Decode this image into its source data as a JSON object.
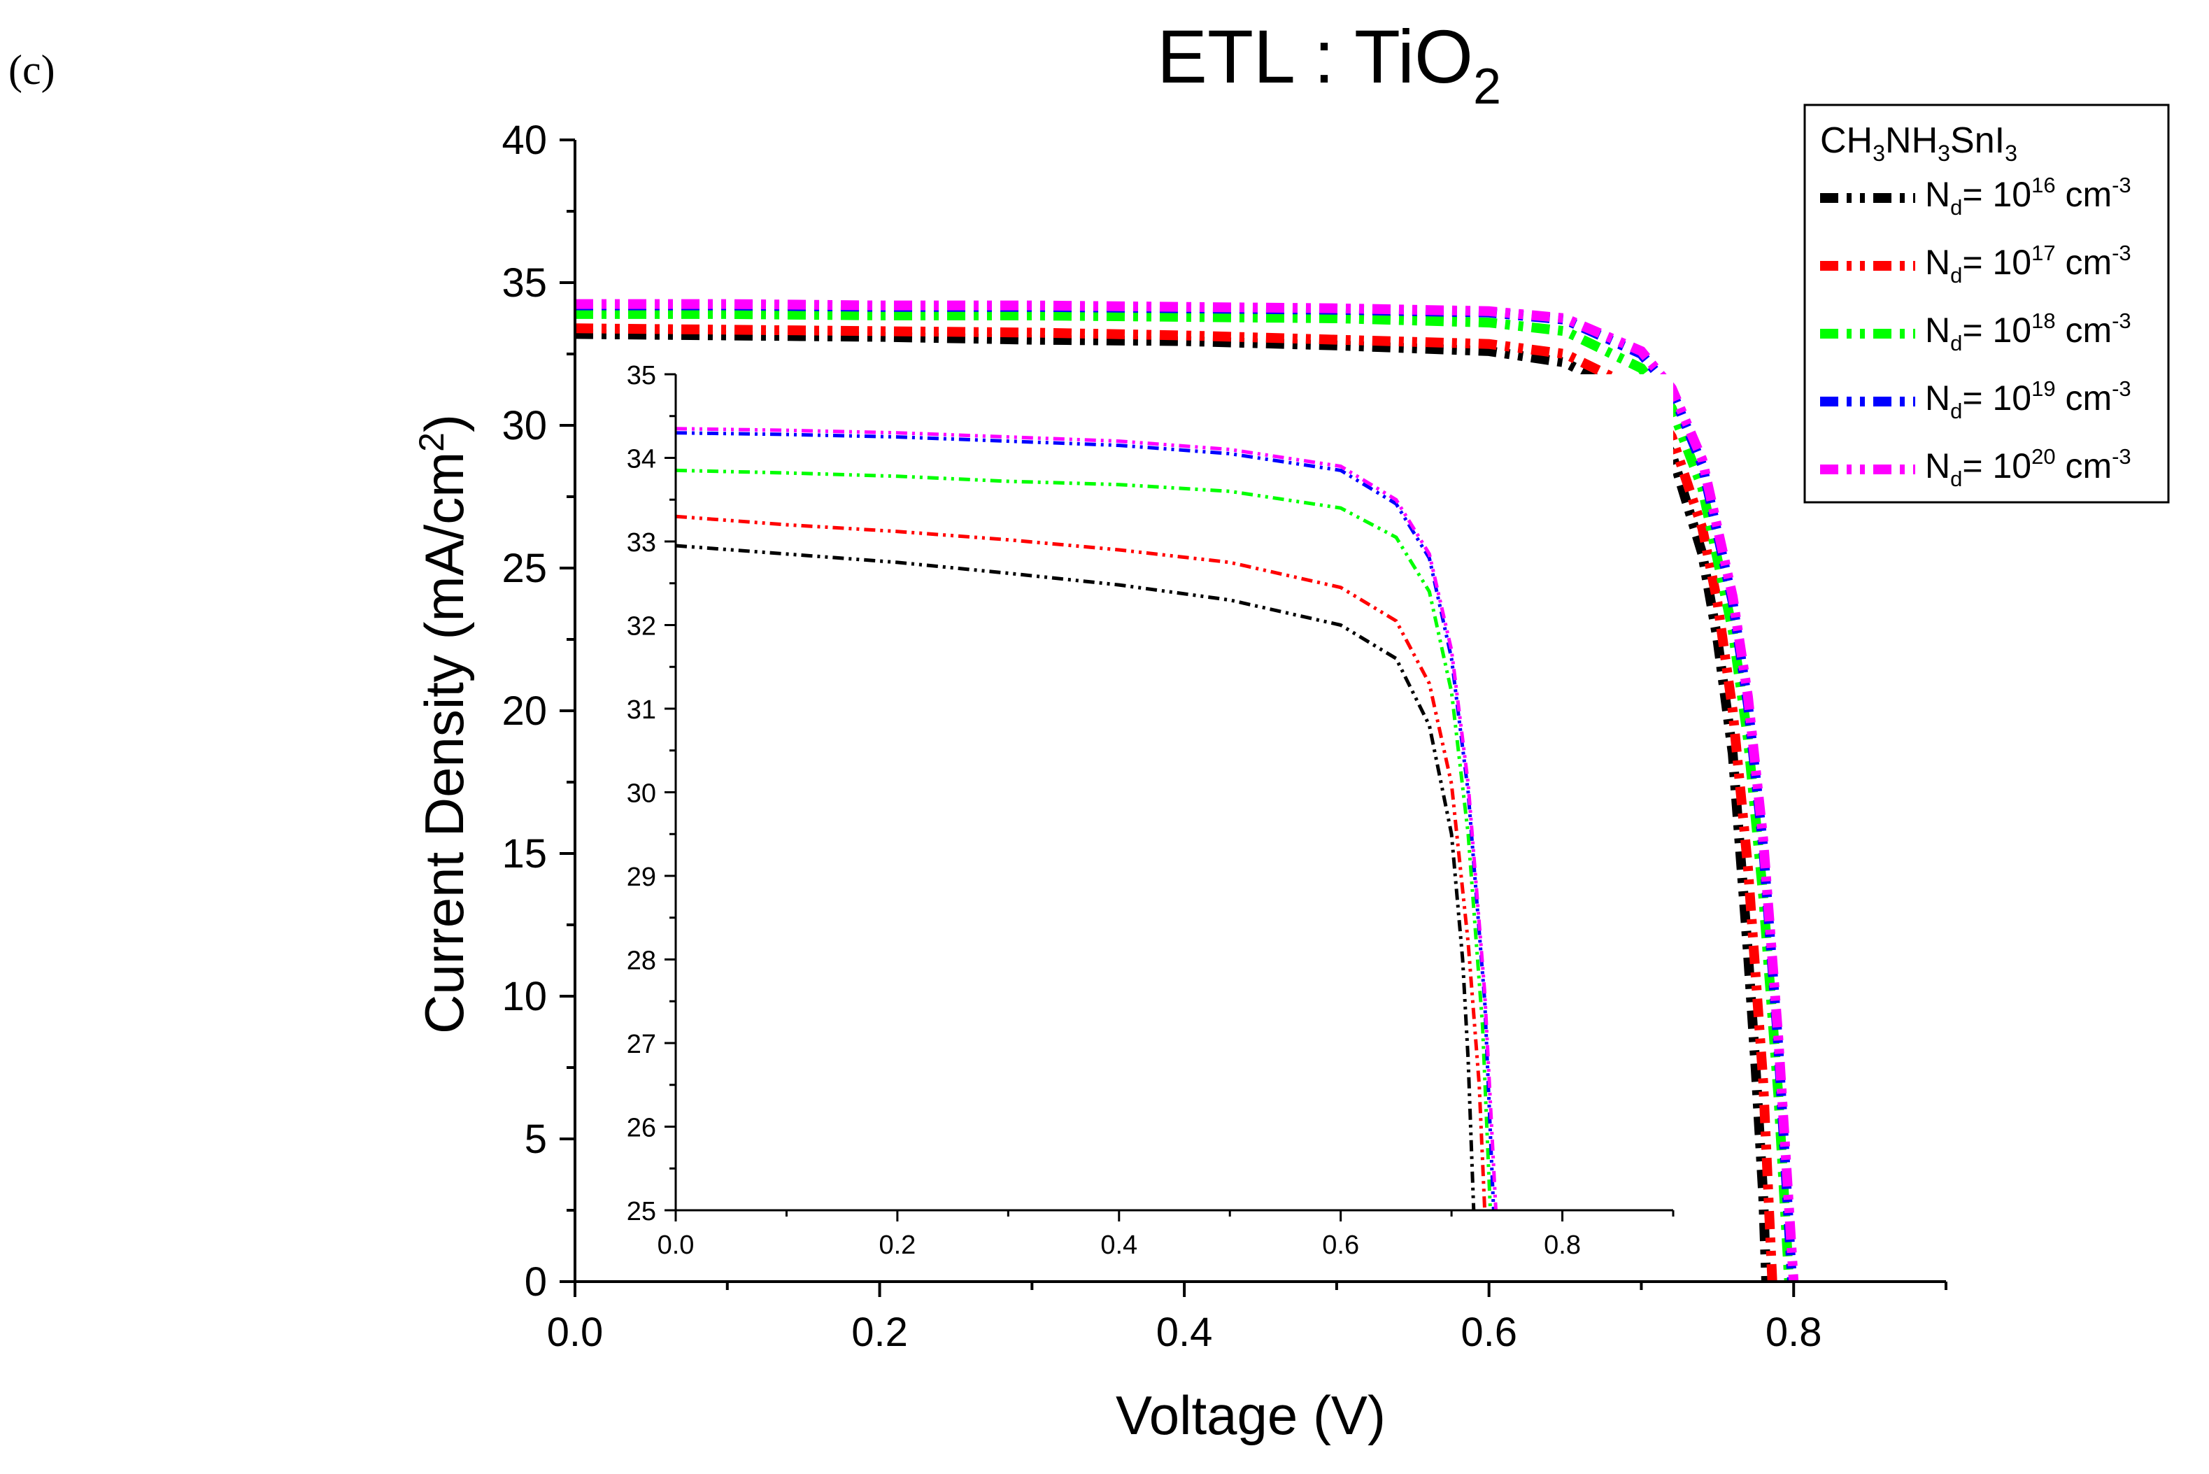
{
  "panel_label": "(c)",
  "chart_data": {
    "type": "line",
    "title": "ETL : TiO",
    "title_sub": "2",
    "xlabel": "Voltage (V)",
    "ylabel": "Current Density (mA/cm",
    "ylabel_sup": "2",
    "ylabel_end": ")",
    "xlim": [
      0,
      0.9
    ],
    "ylim": [
      0,
      40
    ],
    "x_ticks": [
      0.0,
      0.2,
      0.4,
      0.6,
      0.8
    ],
    "x_tick_labels": [
      "0.0",
      "0.2",
      "0.4",
      "0.6",
      "0.8"
    ],
    "y_ticks": [
      0,
      5,
      10,
      15,
      20,
      25,
      30,
      35,
      40
    ],
    "y_tick_labels": [
      "0",
      "5",
      "10",
      "15",
      "20",
      "25",
      "30",
      "35",
      "40"
    ],
    "legend": {
      "title": "CH3NH3SnI3",
      "title_parts": [
        {
          "t": "CH",
          "s": ""
        },
        {
          "t": "3",
          "s": "sub"
        },
        {
          "t": "NH",
          "s": ""
        },
        {
          "t": "3",
          "s": "sub"
        },
        {
          "t": "SnI",
          "s": ""
        },
        {
          "t": "3",
          "s": "sub"
        }
      ],
      "position": "top-right",
      "entries": [
        {
          "parts": [
            {
              "t": "N",
              "s": ""
            },
            {
              "t": "d",
              "s": "sub"
            },
            {
              "t": "= 10",
              "s": ""
            },
            {
              "t": "16",
              "s": "sup"
            },
            {
              "t": " cm",
              "s": ""
            },
            {
              "t": "-3",
              "s": "sup"
            }
          ]
        },
        {
          "parts": [
            {
              "t": "N",
              "s": ""
            },
            {
              "t": "d",
              "s": "sub"
            },
            {
              "t": "= 10",
              "s": ""
            },
            {
              "t": "17",
              "s": "sup"
            },
            {
              "t": " cm",
              "s": ""
            },
            {
              "t": "-3",
              "s": "sup"
            }
          ]
        },
        {
          "parts": [
            {
              "t": "N",
              "s": ""
            },
            {
              "t": "d",
              "s": "sub"
            },
            {
              "t": "= 10",
              "s": ""
            },
            {
              "t": "18",
              "s": "sup"
            },
            {
              "t": " cm",
              "s": ""
            },
            {
              "t": "-3",
              "s": "sup"
            }
          ]
        },
        {
          "parts": [
            {
              "t": "N",
              "s": ""
            },
            {
              "t": "d",
              "s": "sub"
            },
            {
              "t": "= 10",
              "s": ""
            },
            {
              "t": "19",
              "s": "sup"
            },
            {
              "t": " cm",
              "s": ""
            },
            {
              "t": "-3",
              "s": "sup"
            }
          ]
        },
        {
          "parts": [
            {
              "t": "N",
              "s": ""
            },
            {
              "t": "d",
              "s": "sub"
            },
            {
              "t": "= 10",
              "s": ""
            },
            {
              "t": "20",
              "s": "sup"
            },
            {
              "t": " cm",
              "s": ""
            },
            {
              "t": "-3",
              "s": "sup"
            }
          ]
        }
      ]
    },
    "series": [
      {
        "name": "Nd = 10^16 cm^-3",
        "color": "#000000",
        "jsc": 33.2,
        "voc": 0.782,
        "points": [
          [
            0.0,
            33.2
          ],
          [
            0.1,
            33.15
          ],
          [
            0.2,
            33.1
          ],
          [
            0.3,
            33.0
          ],
          [
            0.4,
            32.95
          ],
          [
            0.5,
            32.8
          ],
          [
            0.6,
            32.6
          ],
          [
            0.65,
            32.2
          ],
          [
            0.7,
            30.8
          ],
          [
            0.72,
            29.0
          ],
          [
            0.74,
            25.5
          ],
          [
            0.75,
            22.5
          ],
          [
            0.76,
            18.5
          ],
          [
            0.77,
            11.5
          ],
          [
            0.775,
            7.5
          ],
          [
            0.78,
            3.0
          ],
          [
            0.782,
            0.0
          ]
        ]
      },
      {
        "name": "Nd = 10^17 cm^-3",
        "color": "#ff0000",
        "jsc": 33.4,
        "voc": 0.786,
        "points": [
          [
            0.0,
            33.4
          ],
          [
            0.1,
            33.35
          ],
          [
            0.2,
            33.3
          ],
          [
            0.3,
            33.25
          ],
          [
            0.4,
            33.15
          ],
          [
            0.5,
            33.0
          ],
          [
            0.6,
            32.85
          ],
          [
            0.65,
            32.5
          ],
          [
            0.7,
            31.2
          ],
          [
            0.72,
            29.6
          ],
          [
            0.74,
            26.4
          ],
          [
            0.75,
            23.8
          ],
          [
            0.76,
            20.0
          ],
          [
            0.77,
            14.5
          ],
          [
            0.78,
            7.0
          ],
          [
            0.786,
            0.0
          ]
        ]
      },
      {
        "name": "Nd = 10^18 cm^-3",
        "color": "#00ff00",
        "jsc": 33.9,
        "voc": 0.797,
        "points": [
          [
            0.0,
            33.9
          ],
          [
            0.1,
            33.9
          ],
          [
            0.2,
            33.85
          ],
          [
            0.3,
            33.85
          ],
          [
            0.4,
            33.8
          ],
          [
            0.5,
            33.75
          ],
          [
            0.6,
            33.6
          ],
          [
            0.65,
            33.3
          ],
          [
            0.7,
            32.0
          ],
          [
            0.72,
            30.6
          ],
          [
            0.74,
            27.8
          ],
          [
            0.76,
            22.8
          ],
          [
            0.77,
            19.0
          ],
          [
            0.78,
            13.5
          ],
          [
            0.79,
            6.5
          ],
          [
            0.797,
            0.0
          ]
        ]
      },
      {
        "name": "Nd = 10^19 cm^-3",
        "color": "#0000ff",
        "jsc": 34.2,
        "voc": 0.799,
        "points": [
          [
            0.0,
            34.2
          ],
          [
            0.1,
            34.2
          ],
          [
            0.2,
            34.15
          ],
          [
            0.3,
            34.15
          ],
          [
            0.4,
            34.1
          ],
          [
            0.5,
            34.05
          ],
          [
            0.6,
            33.95
          ],
          [
            0.65,
            33.7
          ],
          [
            0.7,
            32.5
          ],
          [
            0.72,
            31.2
          ],
          [
            0.74,
            28.6
          ],
          [
            0.76,
            23.8
          ],
          [
            0.77,
            20.2
          ],
          [
            0.78,
            15.2
          ],
          [
            0.79,
            8.2
          ],
          [
            0.799,
            0.0
          ]
        ]
      },
      {
        "name": "Nd = 10^20 cm^-3",
        "color": "#ff00ff",
        "jsc": 34.25,
        "voc": 0.8,
        "points": [
          [
            0.0,
            34.25
          ],
          [
            0.1,
            34.25
          ],
          [
            0.2,
            34.2
          ],
          [
            0.3,
            34.2
          ],
          [
            0.4,
            34.15
          ],
          [
            0.5,
            34.1
          ],
          [
            0.6,
            34.0
          ],
          [
            0.65,
            33.75
          ],
          [
            0.7,
            32.6
          ],
          [
            0.72,
            31.3
          ],
          [
            0.74,
            28.8
          ],
          [
            0.76,
            24.0
          ],
          [
            0.77,
            20.5
          ],
          [
            0.78,
            15.5
          ],
          [
            0.79,
            8.5
          ],
          [
            0.8,
            0.0
          ]
        ]
      }
    ],
    "inset": {
      "type": "line",
      "xlim": [
        0,
        0.9
      ],
      "ylim": [
        25,
        35
      ],
      "x_ticks": [
        0.0,
        0.2,
        0.4,
        0.6,
        0.8
      ],
      "x_tick_labels": [
        "0.0",
        "0.2",
        "0.4",
        "0.6",
        "0.8"
      ],
      "y_ticks": [
        25,
        26,
        27,
        28,
        29,
        30,
        31,
        32,
        33,
        34,
        35
      ],
      "y_tick_labels": [
        "25",
        "26",
        "27",
        "28",
        "29",
        "30",
        "31",
        "32",
        "33",
        "34",
        "35"
      ],
      "series": [
        {
          "name": "Nd = 10^16 cm^-3",
          "color": "#000000",
          "points": [
            [
              0.0,
              32.95
            ],
            [
              0.1,
              32.85
            ],
            [
              0.2,
              32.75
            ],
            [
              0.3,
              32.62
            ],
            [
              0.4,
              32.48
            ],
            [
              0.5,
              32.3
            ],
            [
              0.6,
              32.0
            ],
            [
              0.65,
              31.6
            ],
            [
              0.68,
              30.8
            ],
            [
              0.7,
              29.5
            ],
            [
              0.71,
              28.0
            ],
            [
              0.715,
              26.8
            ],
            [
              0.72,
              25.0
            ]
          ]
        },
        {
          "name": "Nd = 10^17 cm^-3",
          "color": "#ff0000",
          "points": [
            [
              0.0,
              33.3
            ],
            [
              0.1,
              33.2
            ],
            [
              0.2,
              33.12
            ],
            [
              0.3,
              33.02
            ],
            [
              0.4,
              32.9
            ],
            [
              0.5,
              32.75
            ],
            [
              0.6,
              32.45
            ],
            [
              0.65,
              32.05
            ],
            [
              0.68,
              31.3
            ],
            [
              0.7,
              30.1
            ],
            [
              0.715,
              28.2
            ],
            [
              0.725,
              26.5
            ],
            [
              0.73,
              25.0
            ]
          ]
        },
        {
          "name": "Nd = 10^18 cm^-3",
          "color": "#00ff00",
          "points": [
            [
              0.0,
              33.85
            ],
            [
              0.1,
              33.82
            ],
            [
              0.2,
              33.78
            ],
            [
              0.3,
              33.72
            ],
            [
              0.4,
              33.68
            ],
            [
              0.5,
              33.6
            ],
            [
              0.6,
              33.4
            ],
            [
              0.65,
              33.05
            ],
            [
              0.68,
              32.4
            ],
            [
              0.7,
              31.2
            ],
            [
              0.715,
              29.5
            ],
            [
              0.728,
              27.2
            ],
            [
              0.735,
              25.0
            ]
          ]
        },
        {
          "name": "Nd = 10^19 cm^-3",
          "color": "#0000ff",
          "points": [
            [
              0.0,
              34.3
            ],
            [
              0.1,
              34.28
            ],
            [
              0.2,
              34.25
            ],
            [
              0.3,
              34.2
            ],
            [
              0.4,
              34.15
            ],
            [
              0.5,
              34.05
            ],
            [
              0.6,
              33.85
            ],
            [
              0.65,
              33.45
            ],
            [
              0.68,
              32.8
            ],
            [
              0.7,
              31.6
            ],
            [
              0.715,
              30.0
            ],
            [
              0.73,
              27.5
            ],
            [
              0.738,
              25.0
            ]
          ]
        },
        {
          "name": "Nd = 10^20 cm^-3",
          "color": "#ff00ff",
          "points": [
            [
              0.0,
              34.35
            ],
            [
              0.1,
              34.33
            ],
            [
              0.2,
              34.3
            ],
            [
              0.3,
              34.25
            ],
            [
              0.4,
              34.2
            ],
            [
              0.5,
              34.1
            ],
            [
              0.6,
              33.9
            ],
            [
              0.65,
              33.5
            ],
            [
              0.68,
              32.85
            ],
            [
              0.7,
              31.7
            ],
            [
              0.715,
              30.1
            ],
            [
              0.73,
              27.6
            ],
            [
              0.74,
              25.0
            ]
          ]
        }
      ]
    }
  }
}
